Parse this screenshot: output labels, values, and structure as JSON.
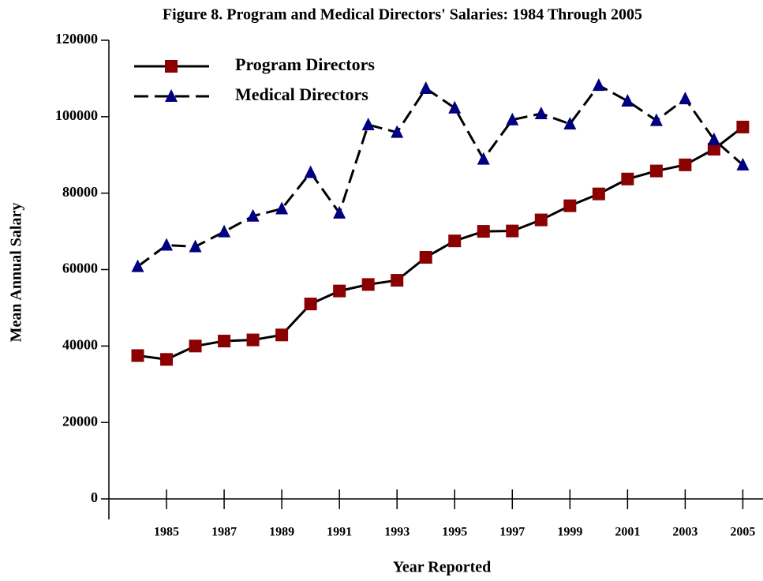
{
  "chart_data": {
    "type": "line",
    "title": "Figure 8.  Program and Medical Directors' Salaries: 1984 Through 2005",
    "x_label": "Year Reported",
    "y_label": "Mean Annual Salary",
    "x": [
      1984,
      1985,
      1986,
      1987,
      1988,
      1989,
      1990,
      1991,
      1992,
      1993,
      1994,
      1995,
      1996,
      1997,
      1998,
      1999,
      2000,
      2001,
      2002,
      2003,
      2004,
      2005
    ],
    "series": [
      {
        "name": "Program Directors",
        "color": "#8b0000",
        "marker": "square",
        "line_style": "solid",
        "values": [
          37500,
          36500,
          40000,
          41300,
          41600,
          42900,
          51000,
          54400,
          56100,
          57200,
          63200,
          67500,
          70000,
          70100,
          73000,
          76700,
          79800,
          83700,
          85800,
          87400,
          91500,
          97300
        ]
      },
      {
        "name": "Medical Directors",
        "color": "#000080",
        "marker": "triangle",
        "line_style": "dashed",
        "values": [
          60800,
          66400,
          66000,
          69900,
          74000,
          75900,
          85400,
          74800,
          97900,
          95900,
          107400,
          102300,
          88900,
          99200,
          100800,
          98100,
          108200,
          104100,
          99000,
          104700,
          94000,
          87400
        ]
      }
    ],
    "xlim": [
      1983,
      2005.7
    ],
    "xticks": [
      1985,
      1987,
      1989,
      1991,
      1993,
      1995,
      1997,
      1999,
      2001,
      2003,
      2005
    ],
    "ylim": [
      0,
      120000
    ],
    "yticks": [
      0,
      20000,
      40000,
      60000,
      80000,
      100000,
      120000
    ],
    "legend": "top-left"
  }
}
